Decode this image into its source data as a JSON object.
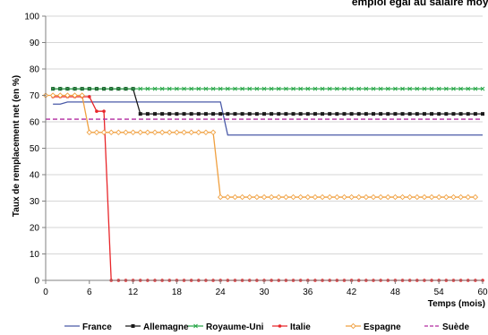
{
  "chart_data": {
    "type": "line",
    "title": "emploi égal au salaire moy.",
    "xlabel": "Temps (mois)",
    "ylabel": "Taux de remplacement net (en %)",
    "xlim": [
      0,
      60
    ],
    "ylim": [
      0,
      100
    ],
    "x_ticks": [
      0,
      6,
      12,
      18,
      24,
      30,
      36,
      42,
      48,
      54,
      60
    ],
    "y_ticks": [
      0,
      10,
      20,
      30,
      40,
      50,
      60,
      70,
      80,
      90,
      100
    ],
    "grid": "horizontal",
    "legend_position": "bottom",
    "series": [
      {
        "name": "France",
        "color": "#4a5aa8",
        "marker": "none",
        "dash": "solid",
        "points": [
          [
            1,
            66.7
          ],
          [
            2,
            66.7
          ],
          [
            3,
            67.5
          ],
          [
            24,
            67.5
          ],
          [
            25,
            55
          ],
          [
            60,
            55
          ]
        ]
      },
      {
        "name": "Allemagne",
        "color": "#1a1a1a",
        "marker": "square",
        "dash": "solid",
        "points": [
          [
            1,
            72.5
          ],
          [
            2,
            72.5
          ],
          [
            3,
            72.5
          ],
          [
            4,
            72.5
          ],
          [
            5,
            72.5
          ],
          [
            6,
            72.5
          ],
          [
            7,
            72.5
          ],
          [
            8,
            72.5
          ],
          [
            9,
            72.5
          ],
          [
            10,
            72.5
          ],
          [
            11,
            72.5
          ],
          [
            12,
            72.5
          ],
          [
            13,
            63
          ],
          [
            14,
            63
          ],
          [
            15,
            63
          ],
          [
            16,
            63
          ],
          [
            17,
            63
          ],
          [
            18,
            63
          ],
          [
            19,
            63
          ],
          [
            20,
            63
          ],
          [
            21,
            63
          ],
          [
            22,
            63
          ],
          [
            23,
            63
          ],
          [
            24,
            63
          ],
          [
            25,
            63
          ],
          [
            26,
            63
          ],
          [
            27,
            63
          ],
          [
            28,
            63
          ],
          [
            29,
            63
          ],
          [
            30,
            63
          ],
          [
            31,
            63
          ],
          [
            32,
            63
          ],
          [
            33,
            63
          ],
          [
            34,
            63
          ],
          [
            35,
            63
          ],
          [
            36,
            63
          ],
          [
            37,
            63
          ],
          [
            38,
            63
          ],
          [
            39,
            63
          ],
          [
            40,
            63
          ],
          [
            41,
            63
          ],
          [
            42,
            63
          ],
          [
            43,
            63
          ],
          [
            44,
            63
          ],
          [
            45,
            63
          ],
          [
            46,
            63
          ],
          [
            47,
            63
          ],
          [
            48,
            63
          ],
          [
            49,
            63
          ],
          [
            50,
            63
          ],
          [
            51,
            63
          ],
          [
            52,
            63
          ],
          [
            53,
            63
          ],
          [
            54,
            63
          ],
          [
            55,
            63
          ],
          [
            56,
            63
          ],
          [
            57,
            63
          ],
          [
            58,
            63
          ],
          [
            59,
            63
          ],
          [
            60,
            63
          ]
        ]
      },
      {
        "name": "Royaume-Uni",
        "color": "#2aa84a",
        "marker": "x",
        "dash": "solid",
        "points": [
          [
            1,
            72.5
          ],
          [
            2,
            72.5
          ],
          [
            3,
            72.5
          ],
          [
            4,
            72.5
          ],
          [
            5,
            72.5
          ],
          [
            6,
            72.5
          ],
          [
            7,
            72.5
          ],
          [
            8,
            72.5
          ],
          [
            9,
            72.5
          ],
          [
            10,
            72.5
          ],
          [
            11,
            72.5
          ],
          [
            12,
            72.5
          ],
          [
            13,
            72.5
          ],
          [
            14,
            72.5
          ],
          [
            15,
            72.5
          ],
          [
            16,
            72.5
          ],
          [
            17,
            72.5
          ],
          [
            18,
            72.5
          ],
          [
            19,
            72.5
          ],
          [
            20,
            72.5
          ],
          [
            21,
            72.5
          ],
          [
            22,
            72.5
          ],
          [
            23,
            72.5
          ],
          [
            24,
            72.5
          ],
          [
            25,
            72.5
          ],
          [
            26,
            72.5
          ],
          [
            27,
            72.5
          ],
          [
            28,
            72.5
          ],
          [
            29,
            72.5
          ],
          [
            30,
            72.5
          ],
          [
            31,
            72.5
          ],
          [
            32,
            72.5
          ],
          [
            33,
            72.5
          ],
          [
            34,
            72.5
          ],
          [
            35,
            72.5
          ],
          [
            36,
            72.5
          ],
          [
            37,
            72.5
          ],
          [
            38,
            72.5
          ],
          [
            39,
            72.5
          ],
          [
            40,
            72.5
          ],
          [
            41,
            72.5
          ],
          [
            42,
            72.5
          ],
          [
            43,
            72.5
          ],
          [
            44,
            72.5
          ],
          [
            45,
            72.5
          ],
          [
            46,
            72.5
          ],
          [
            47,
            72.5
          ],
          [
            48,
            72.5
          ],
          [
            49,
            72.5
          ],
          [
            50,
            72.5
          ],
          [
            51,
            72.5
          ],
          [
            52,
            72.5
          ],
          [
            53,
            72.5
          ],
          [
            54,
            72.5
          ],
          [
            55,
            72.5
          ],
          [
            56,
            72.5
          ],
          [
            57,
            72.5
          ],
          [
            58,
            72.5
          ],
          [
            59,
            72.5
          ],
          [
            60,
            72.5
          ]
        ]
      },
      {
        "name": "Italie",
        "color": "#e8262a",
        "marker": "dot",
        "dash": "solid",
        "points": [
          [
            1,
            69.5
          ],
          [
            2,
            69.5
          ],
          [
            3,
            69.5
          ],
          [
            4,
            69.5
          ],
          [
            5,
            69.5
          ],
          [
            6,
            69.5
          ],
          [
            7,
            64
          ],
          [
            8,
            64
          ],
          [
            9,
            0
          ],
          [
            10,
            0
          ],
          [
            11,
            0
          ],
          [
            12,
            0
          ],
          [
            13,
            0
          ],
          [
            14,
            0
          ],
          [
            15,
            0
          ],
          [
            16,
            0
          ],
          [
            17,
            0
          ],
          [
            18,
            0
          ],
          [
            19,
            0
          ],
          [
            20,
            0
          ],
          [
            21,
            0
          ],
          [
            22,
            0
          ],
          [
            23,
            0
          ],
          [
            24,
            0
          ],
          [
            25,
            0
          ],
          [
            26,
            0
          ],
          [
            27,
            0
          ],
          [
            28,
            0
          ],
          [
            29,
            0
          ],
          [
            30,
            0
          ],
          [
            31,
            0
          ],
          [
            32,
            0
          ],
          [
            33,
            0
          ],
          [
            34,
            0
          ],
          [
            35,
            0
          ],
          [
            36,
            0
          ],
          [
            37,
            0
          ],
          [
            38,
            0
          ],
          [
            39,
            0
          ],
          [
            40,
            0
          ],
          [
            41,
            0
          ],
          [
            42,
            0
          ],
          [
            43,
            0
          ],
          [
            44,
            0
          ],
          [
            45,
            0
          ],
          [
            46,
            0
          ],
          [
            47,
            0
          ],
          [
            48,
            0
          ],
          [
            49,
            0
          ],
          [
            50,
            0
          ],
          [
            51,
            0
          ],
          [
            52,
            0
          ],
          [
            53,
            0
          ],
          [
            54,
            0
          ],
          [
            55,
            0
          ],
          [
            56,
            0
          ],
          [
            57,
            0
          ],
          [
            58,
            0
          ],
          [
            59,
            0
          ],
          [
            60,
            0
          ]
        ]
      },
      {
        "name": "Espagne",
        "color": "#f0a040",
        "marker": "diamond",
        "dash": "solid",
        "points": [
          [
            0,
            70
          ],
          [
            1,
            70
          ],
          [
            2,
            70
          ],
          [
            3,
            70
          ],
          [
            4,
            70
          ],
          [
            5,
            70
          ],
          [
            6,
            56
          ],
          [
            7,
            56
          ],
          [
            8,
            56
          ],
          [
            9,
            56
          ],
          [
            10,
            56
          ],
          [
            11,
            56
          ],
          [
            12,
            56
          ],
          [
            13,
            56
          ],
          [
            14,
            56
          ],
          [
            15,
            56
          ],
          [
            16,
            56
          ],
          [
            17,
            56
          ],
          [
            18,
            56
          ],
          [
            19,
            56
          ],
          [
            20,
            56
          ],
          [
            21,
            56
          ],
          [
            22,
            56
          ],
          [
            23,
            56
          ],
          [
            24,
            31.5
          ],
          [
            25,
            31.5
          ],
          [
            26,
            31.5
          ],
          [
            27,
            31.5
          ],
          [
            28,
            31.5
          ],
          [
            29,
            31.5
          ],
          [
            30,
            31.5
          ],
          [
            31,
            31.5
          ],
          [
            32,
            31.5
          ],
          [
            33,
            31.5
          ],
          [
            34,
            31.5
          ],
          [
            35,
            31.5
          ],
          [
            36,
            31.5
          ],
          [
            37,
            31.5
          ],
          [
            38,
            31.5
          ],
          [
            39,
            31.5
          ],
          [
            40,
            31.5
          ],
          [
            41,
            31.5
          ],
          [
            42,
            31.5
          ],
          [
            43,
            31.5
          ],
          [
            44,
            31.5
          ],
          [
            45,
            31.5
          ],
          [
            46,
            31.5
          ],
          [
            47,
            31.5
          ],
          [
            48,
            31.5
          ],
          [
            49,
            31.5
          ],
          [
            50,
            31.5
          ],
          [
            51,
            31.5
          ],
          [
            52,
            31.5
          ],
          [
            53,
            31.5
          ],
          [
            54,
            31.5
          ],
          [
            55,
            31.5
          ],
          [
            56,
            31.5
          ],
          [
            57,
            31.5
          ],
          [
            58,
            31.5
          ],
          [
            59,
            31.5
          ]
        ]
      },
      {
        "name": "Suède",
        "color": "#b22aa0",
        "marker": "none",
        "dash": "dashed",
        "points": [
          [
            0,
            61
          ],
          [
            60,
            61
          ]
        ]
      }
    ]
  }
}
